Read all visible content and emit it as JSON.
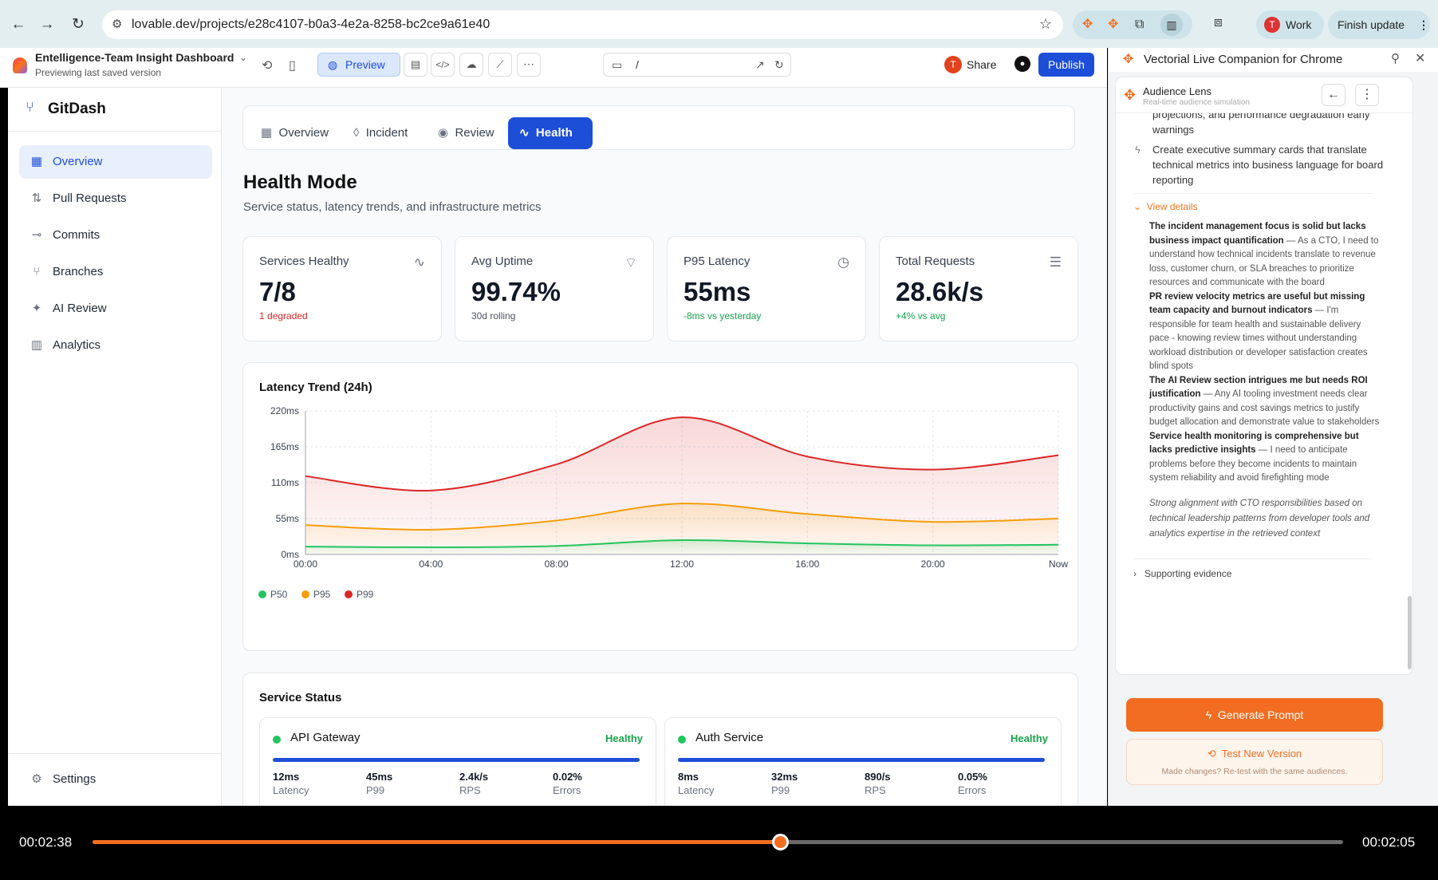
{
  "browser": {
    "url": "lovable.dev/projects/e28c4107-b0a3-4e2a-8258-bc2ce9a61e40",
    "profile_initial": "T",
    "profile_label": "Work",
    "finish_update_label": "Finish update"
  },
  "lovable": {
    "project_title": "Entelligence-Team Insight Dashboard",
    "project_subtitle": "Previewing last saved version",
    "preview_label": "Preview",
    "path": "/",
    "share_label": "Share",
    "share_avatar": "T",
    "publish_label": "Publish"
  },
  "sidebar": {
    "brand": "GitDash",
    "items": [
      {
        "label": "Overview",
        "icon": "grid-icon",
        "active": true
      },
      {
        "label": "Pull Requests",
        "icon": "pull-request-icon"
      },
      {
        "label": "Commits",
        "icon": "commit-icon"
      },
      {
        "label": "Branches",
        "icon": "branch-icon"
      },
      {
        "label": "AI Review",
        "icon": "sparkle-icon"
      },
      {
        "label": "Analytics",
        "icon": "bar-chart-icon"
      }
    ],
    "settings_label": "Settings"
  },
  "tabs": [
    {
      "label": "Overview",
      "icon": "grid-icon"
    },
    {
      "label": "Incident",
      "icon": "flame-icon"
    },
    {
      "label": "Review",
      "icon": "eye-icon"
    },
    {
      "label": "Health",
      "icon": "activity-icon",
      "active": true
    }
  ],
  "header": {
    "title": "Health Mode",
    "subtitle": "Service status, latency trends, and infrastructure metrics"
  },
  "metrics": [
    {
      "label": "Services Healthy",
      "value": "7/8",
      "sub": "1 degraded",
      "sub_color": "#dc2626",
      "icon": "activity-icon"
    },
    {
      "label": "Avg Uptime",
      "value": "99.74%",
      "sub": "30d rolling",
      "sub_color": "#4b5563",
      "icon": "wifi-icon"
    },
    {
      "label": "P95 Latency",
      "value": "55ms",
      "sub": "-8ms vs yesterday",
      "sub_color": "#16a34a",
      "icon": "clock-icon"
    },
    {
      "label": "Total Requests",
      "value": "28.6k/s",
      "sub": "+4% vs avg",
      "sub_color": "#16a34a",
      "icon": "server-icon"
    }
  ],
  "chart_data": {
    "type": "area",
    "title": "Latency Trend (24h)",
    "categories": [
      "00:00",
      "04:00",
      "08:00",
      "12:00",
      "16:00",
      "20:00",
      "Now"
    ],
    "y_ticks": [
      "0ms",
      "55ms",
      "110ms",
      "165ms",
      "220ms"
    ],
    "ylim": [
      0,
      220
    ],
    "grid": true,
    "legend_position": "bottom-left",
    "series": [
      {
        "name": "P50",
        "color": "#22c55e",
        "values": [
          12,
          11,
          13,
          22,
          17,
          14,
          15
        ]
      },
      {
        "name": "P95",
        "color": "#f59e0b",
        "values": [
          45,
          38,
          52,
          78,
          62,
          50,
          55
        ]
      },
      {
        "name": "P99",
        "color": "#dc2626",
        "values": [
          120,
          98,
          138,
          210,
          150,
          130,
          152
        ]
      }
    ]
  },
  "service_status": {
    "title": "Service Status",
    "services": [
      {
        "name": "API Gateway",
        "status": "Healthy",
        "stats": [
          {
            "value": "12ms",
            "label": "Latency"
          },
          {
            "value": "45ms",
            "label": "P99"
          },
          {
            "value": "2.4k/s",
            "label": "RPS"
          },
          {
            "value": "0.02%",
            "label": "Errors"
          }
        ]
      },
      {
        "name": "Auth Service",
        "status": "Healthy",
        "stats": [
          {
            "value": "8ms",
            "label": "Latency"
          },
          {
            "value": "32ms",
            "label": "P99"
          },
          {
            "value": "890/s",
            "label": "RPS"
          },
          {
            "value": "0.05%",
            "label": "Errors"
          }
        ]
      }
    ]
  },
  "companion": {
    "title": "Vectorial Live Companion for Chrome",
    "lens_title": "Audience Lens",
    "lens_subtitle": "Real-time audience simulation",
    "cut_line1": "projections, and performance degradation early",
    "cut_line2": "warnings",
    "bullet_text": "Create executive summary cards that translate technical metrics into business language for board reporting",
    "view_details": "View details",
    "details": [
      {
        "bold": "The incident management focus is solid but lacks business impact quantification",
        "text": " — As a CTO, I need to understand how technical incidents translate to revenue loss, customer churn, or SLA breaches to prioritize resources and communicate with the board"
      },
      {
        "bold": "PR review velocity metrics are useful but missing team capacity and burnout indicators",
        "text": " — I'm responsible for team health and sustainable delivery pace - knowing review times without understanding workload distribution or developer satisfaction creates blind spots"
      },
      {
        "bold": "The AI Review section intrigues me but needs ROI justification",
        "text": " — Any AI tooling investment needs clear productivity gains and cost savings metrics to justify budget allocation and demonstrate value to stakeholders"
      },
      {
        "bold": "Service health monitoring is comprehensive but lacks predictive insights",
        "text": " — I need to anticipate problems before they become incidents to maintain system reliability and avoid firefighting mode"
      }
    ],
    "italic_note": "Strong alignment with CTO responsibilities based on technical leadership patterns from developer tools and analytics expertise in the retrieved context",
    "supporting_evidence": "Supporting evidence",
    "generate_label": "Generate Prompt",
    "test_label": "Test New Version",
    "test_sub": "Made changes? Re-test with the same audiences."
  },
  "player": {
    "elapsed": "00:02:38",
    "remaining": "00:02:05",
    "progress": 0.55
  }
}
